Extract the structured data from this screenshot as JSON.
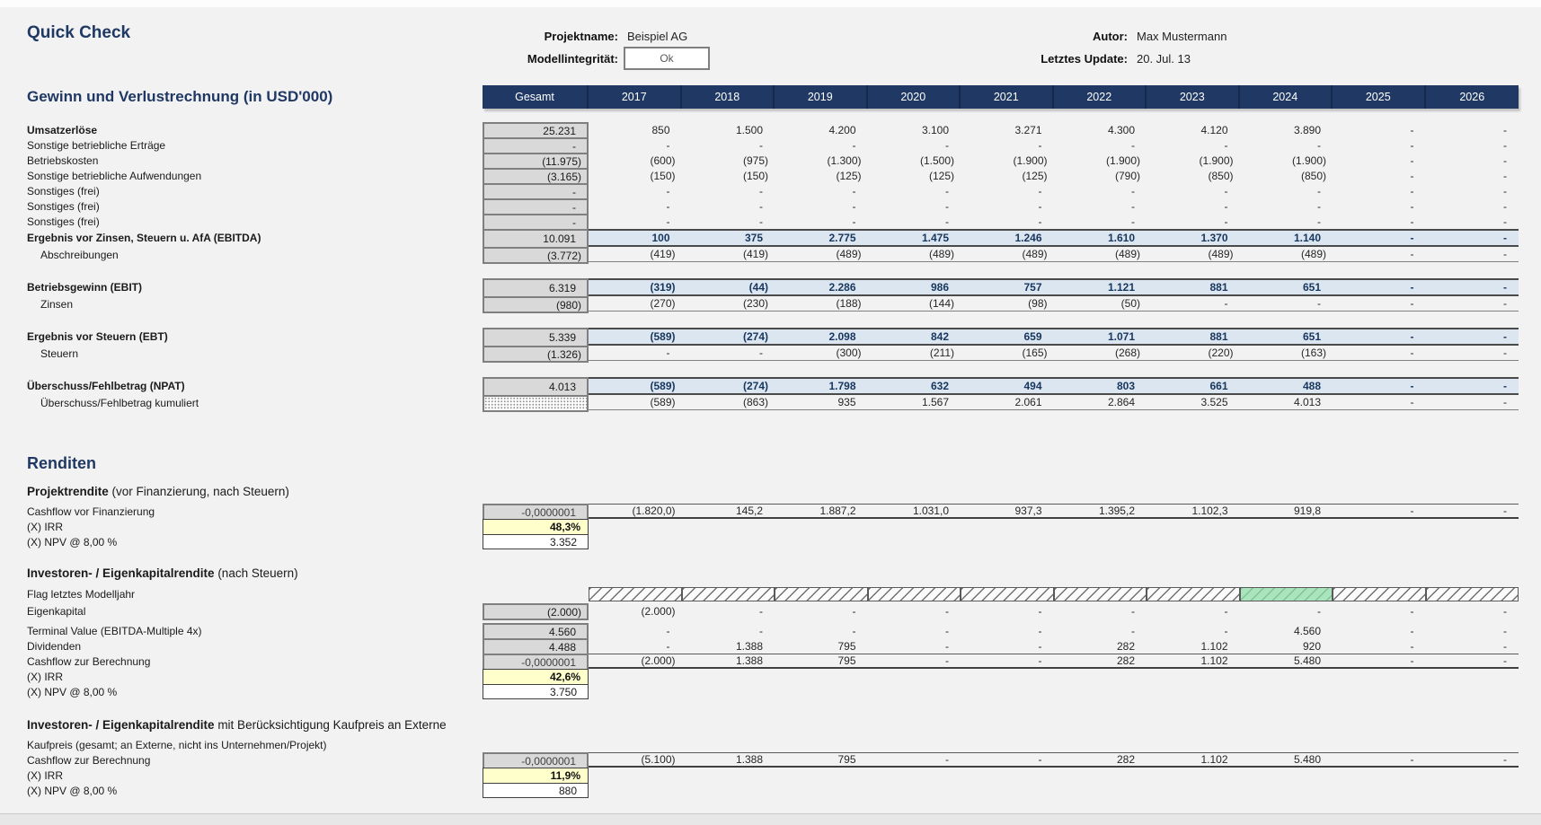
{
  "header": {
    "title": "Quick Check",
    "project_label": "Projektname:",
    "project_value": "Beispiel AG",
    "integrity_label": "Modellintegrität:",
    "integrity_value": "Ok",
    "author_label": "Autor:",
    "author_value": "Max Mustermann",
    "update_label": "Letztes Update:",
    "update_value": "20. Jul. 13"
  },
  "columns": [
    "Gesamt",
    "2017",
    "2018",
    "2019",
    "2020",
    "2021",
    "2022",
    "2023",
    "2024",
    "2025",
    "2026"
  ],
  "colors": {
    "navy": "#1F3864",
    "light_blue_total": "#DCE6F1",
    "gray_input": "#D9D9D9",
    "yellow_irr": "#FFFFCC",
    "green_flag": "#A9E4BD"
  },
  "pnl": {
    "title": "Gewinn und Verlustrechnung (in USD'000)",
    "rows": [
      {
        "label": "Umsatzerlöse",
        "bold": true,
        "style": "plain",
        "gs": "box",
        "g": "25.231",
        "vals": [
          "850",
          "1.500",
          "4.200",
          "3.100",
          "3.271",
          "4.300",
          "4.120",
          "3.890",
          "-",
          "-"
        ]
      },
      {
        "label": "Sonstige betriebliche Erträge",
        "style": "plain",
        "gs": "box",
        "g": "-",
        "vals": [
          "-",
          "-",
          "-",
          "-",
          "-",
          "-",
          "-",
          "-",
          "-",
          "-"
        ]
      },
      {
        "label": "Betriebskosten",
        "style": "plain",
        "gs": "box",
        "g": "(11.975)",
        "vals": [
          "(600)",
          "(975)",
          "(1.300)",
          "(1.500)",
          "(1.900)",
          "(1.900)",
          "(1.900)",
          "(1.900)",
          "-",
          "-"
        ]
      },
      {
        "label": "Sonstige betriebliche Aufwendungen",
        "style": "plain",
        "gs": "box",
        "g": "(3.165)",
        "vals": [
          "(150)",
          "(150)",
          "(125)",
          "(125)",
          "(125)",
          "(790)",
          "(850)",
          "(850)",
          "-",
          "-"
        ]
      },
      {
        "label": "Sonstiges (frei)",
        "style": "plain",
        "gs": "box",
        "g": "-",
        "vals": [
          "-",
          "-",
          "-",
          "-",
          "-",
          "-",
          "-",
          "-",
          "-",
          "-"
        ]
      },
      {
        "label": "Sonstiges (frei)",
        "style": "plain",
        "gs": "box",
        "g": "-",
        "vals": [
          "-",
          "-",
          "-",
          "-",
          "-",
          "-",
          "-",
          "-",
          "-",
          "-"
        ]
      },
      {
        "label": "Sonstiges (frei)",
        "style": "plain",
        "gs": "box",
        "g": "-",
        "vals": [
          "-",
          "-",
          "-",
          "-",
          "-",
          "-",
          "-",
          "-",
          "-",
          "-"
        ]
      },
      {
        "label": "Ergebnis vor Zinsen, Steuern u. AfA (EBITDA)",
        "bold": true,
        "style": "total",
        "gs": "box",
        "g": "10.091",
        "vals": [
          "100",
          "375",
          "2.775",
          "1.475",
          "1.246",
          "1.610",
          "1.370",
          "1.140",
          "-",
          "-"
        ]
      },
      {
        "label": "Abschreibungen",
        "ind": true,
        "style": "sub",
        "gs": "box",
        "g": "(3.772)",
        "vals": [
          "(419)",
          "(419)",
          "(489)",
          "(489)",
          "(489)",
          "(489)",
          "(489)",
          "(489)",
          "-",
          "-"
        ]
      },
      {
        "label": "Betriebsgewinn (EBIT)",
        "bold": true,
        "style": "total",
        "gap": "md",
        "gs": "box",
        "g": "6.319",
        "vals": [
          "(319)",
          "(44)",
          "2.286",
          "986",
          "757",
          "1.121",
          "881",
          "651",
          "-",
          "-"
        ]
      },
      {
        "label": "Zinsen",
        "ind": true,
        "style": "sub",
        "gs": "box",
        "g": "(980)",
        "vals": [
          "(270)",
          "(230)",
          "(188)",
          "(144)",
          "(98)",
          "(50)",
          "-",
          "-",
          "-",
          "-"
        ]
      },
      {
        "label": "Ergebnis vor Steuern (EBT)",
        "bold": true,
        "style": "total",
        "gap": "md",
        "gs": "box",
        "g": "5.339",
        "vals": [
          "(589)",
          "(274)",
          "2.098",
          "842",
          "659",
          "1.071",
          "881",
          "651",
          "-",
          "-"
        ]
      },
      {
        "label": "Steuern",
        "ind": true,
        "style": "sub",
        "gs": "box",
        "g": "(1.326)",
        "vals": [
          "-",
          "-",
          "(300)",
          "(211)",
          "(165)",
          "(268)",
          "(220)",
          "(163)",
          "-",
          "-"
        ]
      },
      {
        "label": "Überschuss/Fehlbetrag (NPAT)",
        "bold": true,
        "style": "total",
        "gap": "md",
        "gs": "box",
        "g": "4.013",
        "vals": [
          "(589)",
          "(274)",
          "1.798",
          "632",
          "494",
          "803",
          "661",
          "488",
          "-",
          "-"
        ]
      },
      {
        "label": "Überschuss/Fehlbetrag kumuliert",
        "ind": true,
        "style": "sub",
        "gs": "dots",
        "g": "",
        "vals": [
          "(589)",
          "(863)",
          "935",
          "1.567",
          "2.061",
          "2.864",
          "3.525",
          "4.013",
          "-",
          "-"
        ]
      }
    ]
  },
  "renditen": {
    "title": "Renditen",
    "s1_bold": "Projektrendite",
    "s1_rest": " (vor Finanzierung, nach Steuern)",
    "rows1": [
      {
        "label": "Cashflow vor Finanzierung",
        "style": "cf",
        "gs": "gray",
        "g": "-0,0000001",
        "vals": [
          "(1.820,0)",
          "145,2",
          "1.887,2",
          "1.031,0",
          "937,3",
          "1.395,2",
          "1.102,3",
          "919,8",
          "-",
          "-"
        ]
      },
      {
        "label": "(X) IRR",
        "style": "plain",
        "gs": "irr",
        "g": "48,3%"
      },
      {
        "label": "(X) NPV @  8,00 %",
        "style": "plain",
        "gs": "npv",
        "g": "3.352"
      }
    ],
    "s2_bold": "Investoren- / Eigenkapitalrendite",
    "s2_rest": " (nach Steuern)",
    "rows2": [
      {
        "label": "Flag letztes Modelljahr",
        "style": "flag",
        "green": 7
      },
      {
        "label": "Eigenkapital",
        "style": "plain",
        "gs": "box",
        "g": "(2.000)",
        "vals": [
          "(2.000)",
          "-",
          "-",
          "-",
          "-",
          "-",
          "-",
          "-",
          "-",
          "-"
        ]
      },
      {
        "label": "Terminal Value (EBITDA-Multiple 4x)",
        "style": "plain",
        "gap": "sm",
        "gs": "box",
        "g": "4.560",
        "vals": [
          "-",
          "-",
          "-",
          "-",
          "-",
          "-",
          "-",
          "4.560",
          "-",
          "-"
        ]
      },
      {
        "label": "Dividenden",
        "style": "plain",
        "gs": "box",
        "g": "4.488",
        "vals": [
          "-",
          "1.388",
          "795",
          "-",
          "-",
          "282",
          "1.102",
          "920",
          "-",
          "-"
        ]
      },
      {
        "label": "Cashflow zur Berechnung",
        "style": "cf",
        "gs": "gray",
        "g": "-0,0000001",
        "vals": [
          "(2.000)",
          "1.388",
          "795",
          "-",
          "-",
          "282",
          "1.102",
          "5.480",
          "-",
          "-"
        ]
      },
      {
        "label": "(X) IRR",
        "style": "plain",
        "gs": "irr",
        "g": "42,6%"
      },
      {
        "label": "(X) NPV @  8,00 %",
        "style": "plain",
        "gs": "npv",
        "g": "3.750"
      }
    ],
    "s3_bold": "Investoren- / Eigenkapitalrendite",
    "s3_rest": " mit Berücksichtigung Kaufpreis an Externe",
    "rows3": [
      {
        "label": "Kaufpreis (gesamt; an Externe, nicht ins Unternehmen/Projekt)",
        "style": "labelonly"
      },
      {
        "label": "Cashflow zur Berechnung",
        "style": "cf",
        "gs": "gray",
        "g": "-0,0000001",
        "vals": [
          "(5.100)",
          "1.388",
          "795",
          "-",
          "-",
          "282",
          "1.102",
          "5.480",
          "-",
          "-"
        ]
      },
      {
        "label": "(X) IRR",
        "style": "plain",
        "gs": "irr",
        "g": "11,9%"
      },
      {
        "label": "(X) NPV @  8,00 %",
        "style": "plain",
        "gs": "npv",
        "g": "880"
      }
    ]
  }
}
